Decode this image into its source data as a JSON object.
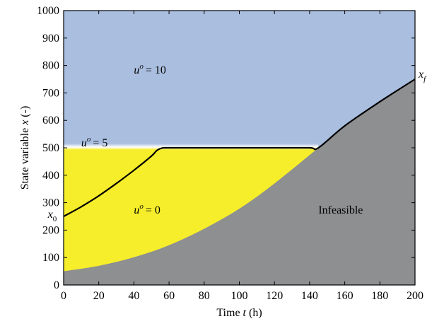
{
  "chart_data": {
    "type": "area",
    "title": "",
    "xlabel": "Time t (h)",
    "ylabel": "State variable x (-)",
    "xlim": [
      0,
      200
    ],
    "ylim": [
      0,
      1000
    ],
    "x_ticks": [
      0,
      20,
      40,
      60,
      80,
      100,
      120,
      140,
      160,
      180,
      200
    ],
    "y_ticks": [
      0,
      100,
      200,
      300,
      400,
      500,
      600,
      700,
      800,
      900,
      1000
    ],
    "grid": false,
    "colors": {
      "u10_region": "#aabfe0",
      "u0_region": "#f6ee2a",
      "infeasible_region": "#8e8f91",
      "trajectory": "#000000"
    },
    "infeasible_boundary": {
      "x": [
        0,
        20,
        40,
        60,
        80,
        100,
        120,
        145,
        160,
        180,
        200
      ],
      "y": [
        50,
        70,
        101,
        145,
        205,
        278,
        370,
        500,
        580,
        668,
        750
      ]
    },
    "constraint_level": 500,
    "optimal_trajectory": {
      "x": [
        0,
        10,
        20,
        30,
        40,
        50,
        53,
        56,
        60,
        80,
        100,
        120,
        140,
        145,
        160,
        180,
        200
      ],
      "y": [
        250,
        285,
        325,
        370,
        418,
        470,
        490,
        499,
        500,
        500,
        500,
        500,
        500,
        500,
        580,
        668,
        750
      ]
    },
    "annotations": {
      "u10": {
        "text": "= 10",
        "x": 40,
        "y": 770
      },
      "u5": {
        "text": "= 5",
        "x": 10,
        "y": 505
      },
      "u0": {
        "text": "= 0",
        "x": 40,
        "y": 260
      },
      "infeasible": {
        "text": "Infeasible",
        "x": 145,
        "y": 260
      },
      "x0": {
        "text": "x",
        "sub": "0",
        "x": -9,
        "y": 245
      },
      "xf": {
        "text": "x",
        "sub": "f",
        "x": 202,
        "y": 755
      }
    },
    "annot_var": "u",
    "annot_sup": "o"
  }
}
